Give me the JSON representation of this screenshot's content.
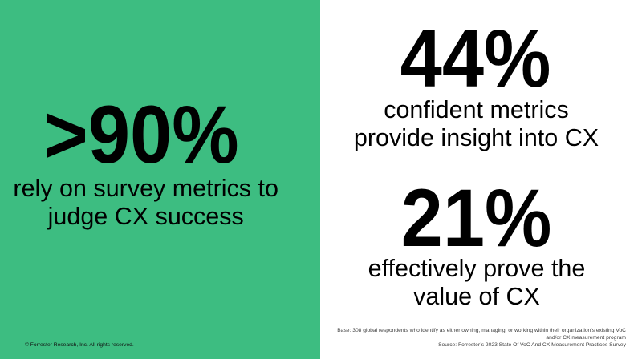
{
  "colors": {
    "panel_green": "#3DBD81",
    "text_black": "#000000",
    "smallprint_gray": "#404040"
  },
  "left_panel": {
    "stat": {
      "value": ">90%",
      "caption_lines": [
        "rely on survey metrics to",
        "judge CX success"
      ]
    },
    "copyright": "© Forrester Research, Inc. All rights reserved."
  },
  "right_panel": {
    "stats": [
      {
        "value": "44%",
        "caption_lines": [
          "confident metrics",
          "provide insight into CX"
        ]
      },
      {
        "value": "21%",
        "caption_lines": [
          "effectively prove the",
          "value of CX"
        ]
      }
    ],
    "source_note_lines": [
      "Base: 308 global respondents who identify as either owning, managing, or working within their organization’s existing VoC",
      "and/or CX measurement program",
      "Source: Forrester’s 2023 State Of VoC And CX Measurement Practices Survey"
    ]
  }
}
